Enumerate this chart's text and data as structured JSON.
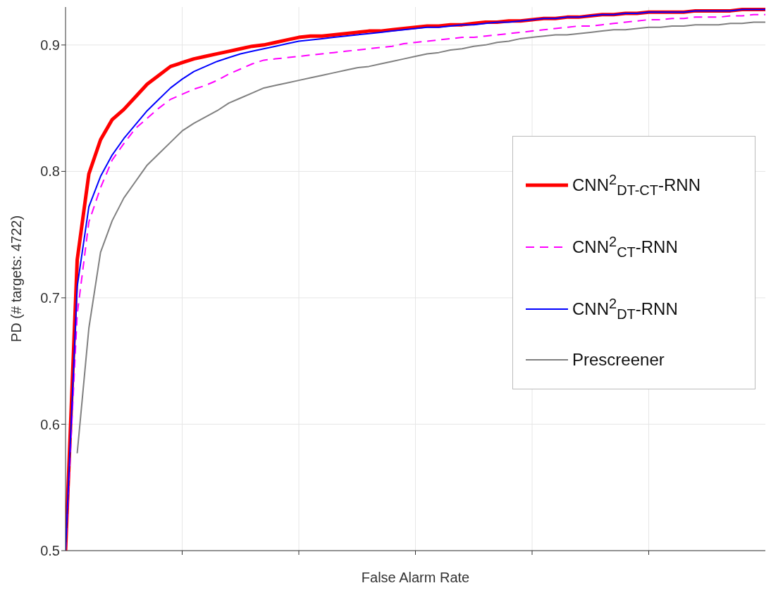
{
  "chart_data": {
    "type": "line",
    "xlabel": "False Alarm Rate",
    "ylabel": "PD (# targets: 4722)",
    "categories": [
      null,
      null,
      null,
      null,
      null,
      null,
      null,
      null,
      null,
      null,
      null,
      null,
      null,
      null,
      null,
      null,
      null,
      null,
      null,
      null,
      null,
      null,
      null,
      null,
      null,
      null,
      null,
      null,
      null,
      null,
      null,
      null,
      null,
      null,
      null,
      null,
      null,
      null,
      null,
      null,
      null,
      null,
      null,
      null,
      null,
      null,
      null,
      null,
      null,
      null,
      null,
      null,
      null,
      null,
      null,
      null,
      null,
      null,
      null,
      null,
      null
    ],
    "ylim": [
      0.5,
      0.93
    ],
    "yticks": [
      0.5,
      0.6,
      0.7,
      0.8,
      0.9
    ],
    "tick_labels": "y",
    "grid": true,
    "legend": "right",
    "marker": "none",
    "series": [
      {
        "name": "CNN$^{2}$$_{DT-CT}$-RNN",
        "color": "#ff0000",
        "line_style": "solid",
        "values": [
          0.5,
          0.73,
          0.798,
          0.825,
          0.841,
          0.849,
          0.859,
          0.869,
          0.876,
          0.883,
          0.886,
          0.889,
          0.891,
          0.893,
          0.895,
          0.897,
          0.899,
          0.9,
          0.902,
          0.904,
          0.906,
          0.907,
          0.907,
          0.908,
          0.909,
          0.91,
          0.911,
          0.911,
          0.912,
          0.913,
          0.914,
          0.915,
          0.915,
          0.916,
          0.916,
          0.917,
          0.918,
          0.918,
          0.919,
          0.919,
          0.92,
          0.921,
          0.921,
          0.922,
          0.922,
          0.923,
          0.924,
          0.924,
          0.925,
          0.925,
          0.926,
          0.926,
          0.926,
          0.926,
          0.927,
          0.927,
          0.927,
          0.927,
          0.928,
          0.928,
          0.928
        ]
      },
      {
        "name": "CNN$^{2}$$_{CT}$-RNN",
        "color": "#ff00ff",
        "line_style": "dashed",
        "values": [
          0.5,
          0.687,
          0.76,
          0.787,
          0.809,
          0.822,
          0.834,
          0.842,
          0.85,
          0.857,
          0.861,
          0.865,
          0.868,
          0.872,
          0.877,
          0.881,
          0.885,
          0.888,
          0.889,
          0.89,
          0.891,
          0.892,
          0.893,
          0.894,
          0.895,
          0.896,
          0.897,
          0.898,
          0.899,
          0.901,
          0.902,
          0.903,
          0.904,
          0.905,
          0.906,
          0.906,
          0.907,
          0.908,
          0.909,
          0.91,
          0.911,
          0.912,
          0.913,
          0.914,
          0.915,
          0.915,
          0.916,
          0.917,
          0.918,
          0.919,
          0.92,
          0.92,
          0.921,
          0.921,
          0.922,
          0.922,
          0.922,
          0.923,
          0.923,
          0.924,
          0.924
        ]
      },
      {
        "name": "CNN$^{2}$$_{DT}$-RNN",
        "color": "#0000ff",
        "line_style": "solid",
        "values": [
          0.5,
          0.709,
          0.772,
          0.796,
          0.813,
          0.826,
          0.837,
          0.848,
          0.857,
          0.866,
          0.873,
          0.879,
          0.883,
          0.887,
          0.89,
          0.893,
          0.895,
          0.897,
          0.899,
          0.901,
          0.903,
          0.904,
          0.905,
          0.906,
          0.907,
          0.908,
          0.909,
          0.91,
          0.911,
          0.912,
          0.913,
          0.914,
          0.914,
          0.915,
          0.916,
          0.916,
          0.917,
          0.918,
          0.918,
          0.919,
          0.92,
          0.921,
          0.921,
          0.922,
          0.922,
          0.923,
          0.924,
          0.924,
          0.925,
          0.925,
          0.926,
          0.926,
          0.926,
          0.926,
          0.927,
          0.927,
          0.927,
          0.927,
          0.928,
          0.928,
          0.928
        ]
      },
      {
        "name": "Prescreener",
        "color": "#808080",
        "line_style": "solid",
        "values": [
          null,
          0.577,
          0.676,
          0.736,
          0.761,
          0.779,
          0.792,
          0.805,
          0.814,
          0.823,
          0.832,
          0.838,
          0.843,
          0.848,
          0.854,
          0.858,
          0.862,
          0.866,
          0.868,
          0.87,
          0.872,
          0.874,
          0.876,
          0.878,
          0.88,
          0.882,
          0.883,
          0.885,
          0.887,
          0.889,
          0.891,
          0.893,
          0.894,
          0.896,
          0.897,
          0.899,
          0.9,
          0.902,
          0.903,
          0.905,
          0.906,
          0.907,
          0.908,
          0.908,
          0.909,
          0.91,
          0.911,
          0.912,
          0.912,
          0.913,
          0.914,
          0.914,
          0.915,
          0.915,
          0.916,
          0.916,
          0.916,
          0.917,
          0.917,
          0.918,
          0.918
        ]
      }
    ]
  }
}
